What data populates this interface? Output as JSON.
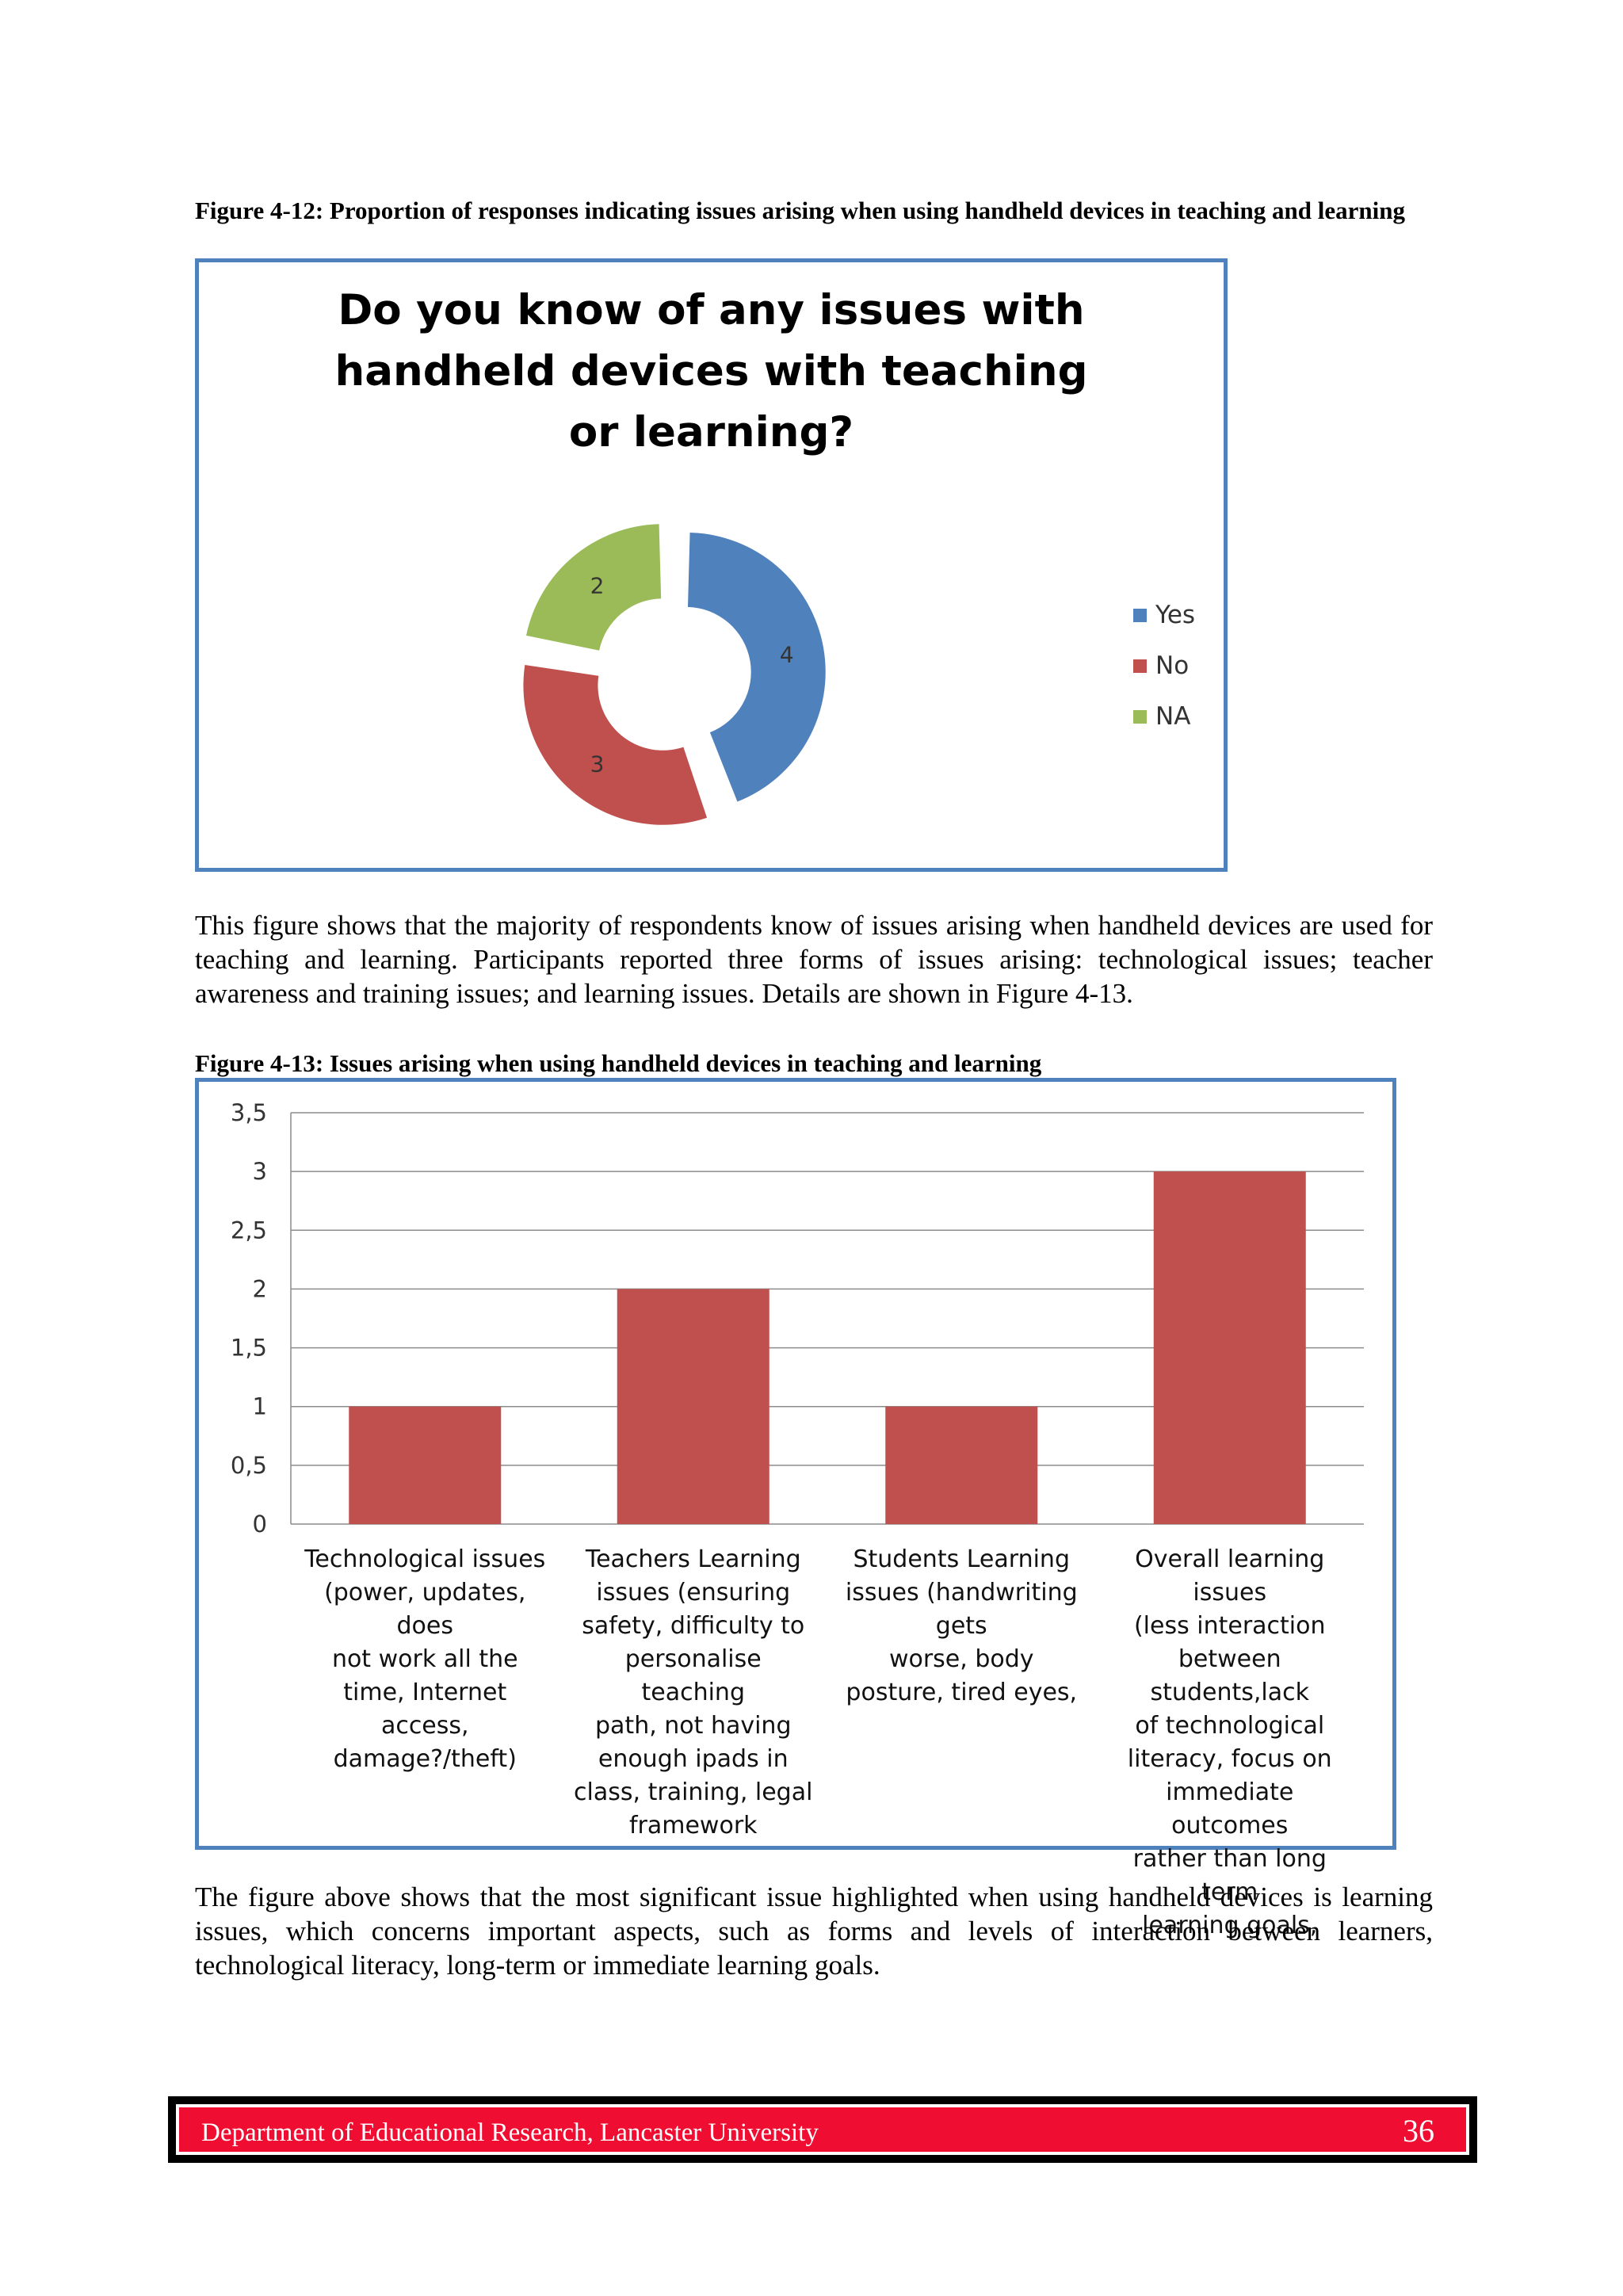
{
  "figure1": {
    "caption": "Figure 4-12: Proportion of responses indicating issues arising when using handheld devices in teaching and learning"
  },
  "paragraph1": "This figure shows that the majority of respondents know of issues arising when handheld devices are used for teaching and learning. Participants reported three forms of issues arising: technological issues; teacher awareness and training issues; and learning issues. Details are shown in Figure 4-13.",
  "figure2": {
    "caption": "Figure 4-13: Issues arising when using handheld devices in teaching and learning"
  },
  "paragraph2": "The figure above shows that the most significant issue highlighted when using handheld devices is learning issues, which concerns important aspects, such as forms and levels of interaction between learners, technological literacy, long-term or immediate learning goals.",
  "footer": {
    "text": "Department of Educational Research, Lancaster University",
    "page": "36"
  },
  "chart_data": [
    {
      "type": "pie",
      "variant": "exploded-doughnut",
      "title": "Do you know of any issues with handheld devices with teaching or learning?",
      "categories": [
        "Yes",
        "No",
        "NA"
      ],
      "values": [
        4,
        3,
        2
      ],
      "colors": [
        "#4f81bd",
        "#c0504d",
        "#9bbb59"
      ],
      "legend": "right",
      "data_labels": true
    },
    {
      "type": "bar",
      "categories": [
        "Technological issues (power, updates, does not work all the time, Internet access, damage?/theft)",
        "Teachers Learning issues (ensuring safety, difficulty to personalise teaching path, not having enough ipads in class, training, legal framework",
        "Students Learning issues (handwriting gets worse, body posture, tired eyes,",
        "Overall learning issues (less interaction between students,lack of technological literacy, focus on immediate outcomes rather than long term learning goals,"
      ],
      "category_lines": [
        [
          "Technological issues",
          "(power, updates, does",
          "not work all the",
          "time, Internet",
          "access, damage?/theft)"
        ],
        [
          "Teachers Learning",
          "issues (ensuring",
          "safety, difficulty to",
          "personalise teaching",
          "path, not having",
          "enough ipads in",
          "class, training, legal",
          "framework"
        ],
        [
          "Students Learning",
          "issues (handwriting gets",
          "worse, body",
          "posture, tired eyes,"
        ],
        [
          "Overall learning issues",
          "(less interaction",
          "between students,lack",
          "of technological",
          "literacy, focus on",
          "immediate outcomes",
          "rather than long term",
          "learning goals,"
        ]
      ],
      "values": [
        1,
        2,
        1,
        3
      ],
      "ylim": [
        0,
        3.5
      ],
      "yticks": [
        "0",
        "0,5",
        "1",
        "1,5",
        "2",
        "2,5",
        "3",
        "3,5"
      ],
      "ytick_values": [
        0,
        0.5,
        1,
        1.5,
        2,
        2.5,
        3,
        3.5
      ],
      "color": "#c0504d",
      "grid": true,
      "legend": "none"
    }
  ]
}
